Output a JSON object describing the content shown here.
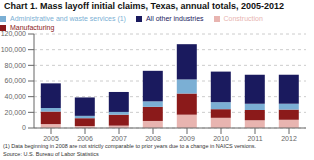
{
  "chart_data": {
    "type": "bar",
    "title": "Chart 1. Mass layoff initial claims, Texas, annual totals, 2005-2012",
    "categories": [
      "2005",
      "2006",
      "2007",
      "2008",
      "2009",
      "2010",
      "2011",
      "2012"
    ],
    "series": [
      {
        "name": "Construction",
        "color": "#e8b4b0",
        "values": [
          5000,
          2500,
          3000,
          9000,
          17000,
          13000,
          10000,
          10500
        ]
      },
      {
        "name": "Manufacturing",
        "color": "#8b1a1a",
        "values": [
          16000,
          10000,
          14000,
          18000,
          27000,
          11000,
          13000,
          13000
        ]
      },
      {
        "name": "Administrative and waste services (1)",
        "color": "#7bafd4",
        "values": [
          4500,
          3000,
          3500,
          7000,
          18000,
          9000,
          8000,
          7500
        ]
      },
      {
        "name": "All other industries",
        "color": "#1a1a5e",
        "values": [
          31500,
          23500,
          25500,
          39000,
          45000,
          39000,
          37000,
          37000
        ]
      }
    ],
    "stacked": true,
    "ylim": [
      0,
      120000
    ],
    "yticks": [
      0,
      {
        "value": 20000,
        "label": "20,000"
      },
      {
        "value": 40000,
        "label": "40,000"
      },
      {
        "value": 60000,
        "label": "60,000"
      },
      {
        "value": 80000,
        "label": "80,000"
      },
      {
        "value": 100000,
        "label": "100,000"
      },
      {
        "value": 120000,
        "label": "120,000"
      }
    ],
    "grid": true,
    "legend": "upper left",
    "annotations": [
      "(1) Data beginning in 2008 are not strictly comparable to prior years due to a change in NAICS versions.",
      "Source: U.S. Bureau of Labor Statistics"
    ]
  }
}
